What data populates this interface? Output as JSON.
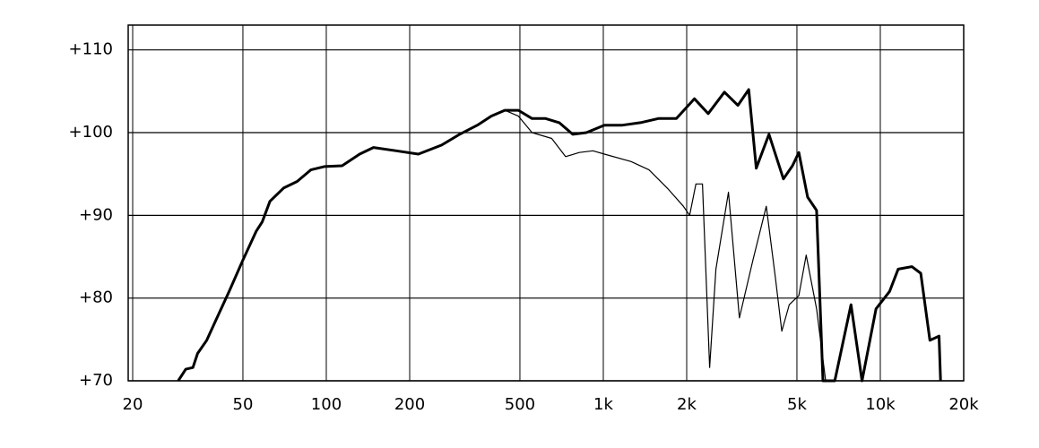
{
  "chart_data": {
    "type": "line",
    "xscale": "log",
    "grid": true,
    "xlim": [
      20,
      20000
    ],
    "ylim": [
      70,
      113
    ],
    "xticks": [
      20,
      50,
      100,
      200,
      500,
      {
        "value": 1000,
        "label": "1k"
      },
      {
        "value": 2000,
        "label": "2k"
      },
      {
        "value": 5000,
        "label": "5k"
      },
      {
        "value": 10000,
        "label": "10k"
      },
      {
        "value": 20000,
        "label": "20k"
      }
    ],
    "yticks": [
      {
        "value": 70,
        "label": "+70"
      },
      {
        "value": 80,
        "label": "+80"
      },
      {
        "value": 90,
        "label": "+90"
      },
      {
        "value": 100,
        "label": "+100"
      },
      {
        "value": 110,
        "label": "+110"
      }
    ],
    "series": [
      {
        "color": "#000000",
        "width": 3,
        "x": [
          29.2,
          31.1,
          33.0,
          34.3,
          37.0,
          39.9,
          44.6,
          50,
          55.9,
          58.7,
          62.6,
          70.1,
          78.5,
          87.9,
          98.4,
          114,
          132,
          148,
          179,
          215,
          261,
          303,
          351,
          394,
          441,
          494,
          553,
          619,
          693,
          776,
          869,
          1009,
          1172,
          1362,
          1580,
          1836,
          2133,
          2391,
          2737,
          3061,
          3350,
          3566,
          3963,
          4470,
          4818,
          5080,
          5467,
          5888,
          6206,
          6852,
          7840,
          8590,
          9650,
          10800,
          11600,
          13000,
          14000,
          15100,
          16300,
          16500
        ],
        "values": [
          70,
          71.4,
          71.6,
          73.3,
          74.9,
          77.3,
          80.8,
          84.6,
          88.1,
          89.2,
          91.7,
          93.3,
          94.1,
          95.5,
          95.9,
          96.0,
          97.4,
          98.2,
          97.8,
          97.4,
          98.5,
          99.8,
          100.9,
          102.0,
          102.7,
          102.7,
          101.7,
          101.7,
          101.2,
          99.8,
          100.0,
          100.9,
          100.9,
          101.2,
          101.7,
          101.7,
          104.1,
          102.3,
          104.9,
          103.3,
          105.2,
          95.7,
          99.8,
          94.4,
          96.0,
          97.6,
          92.2,
          90.6,
          70,
          70,
          79.2,
          70,
          78.7,
          80.8,
          83.5,
          83.8,
          83.0,
          74.9,
          75.4,
          70
        ]
      },
      {
        "color": "#000000",
        "width": 1.2,
        "x": [
          441,
          494,
          553,
          651,
          731,
          819,
          917,
          1009,
          1260,
          1463,
          1701,
          1945,
          2050,
          2160,
          2280,
          2420,
          2550,
          2830,
          3100,
          3470,
          3875,
          4180,
          4410,
          4690,
          5080,
          5400,
          5888,
          6350
        ],
        "values": [
          102.7,
          102.0,
          100.0,
          99.3,
          97.1,
          97.6,
          97.8,
          97.4,
          96.5,
          95.5,
          93.3,
          91.1,
          90.0,
          93.8,
          93.8,
          71.6,
          83.5,
          92.8,
          77.6,
          84.6,
          91.1,
          82.5,
          76.0,
          79.2,
          80.3,
          85.2,
          78.7,
          70
        ]
      }
    ]
  }
}
